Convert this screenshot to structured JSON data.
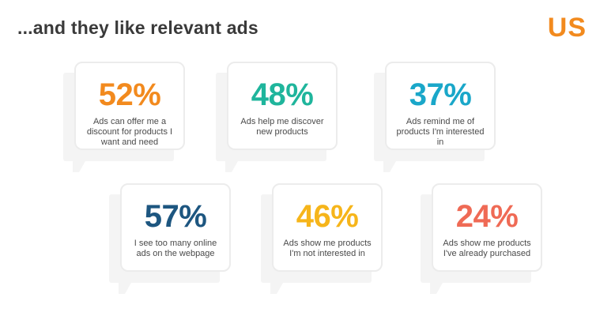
{
  "header": {
    "title": "...and they like relevant ads",
    "logo": "US"
  },
  "colors": {
    "orange": "#f28a1e",
    "teal": "#1fb59c",
    "cyan": "#1aa7c9",
    "navy": "#1d5680",
    "yellow": "#f6b51a",
    "coral": "#ef6a55"
  },
  "cards": [
    {
      "percent": "52%",
      "text": "Ads can offer me a discount for products I want and need",
      "color": "#f28a1e"
    },
    {
      "percent": "48%",
      "text": "Ads help me discover new products",
      "color": "#1fb59c"
    },
    {
      "percent": "37%",
      "text": "Ads remind me of products I'm interested in",
      "color": "#1aa7c9"
    },
    {
      "percent": "57%",
      "text": "I see too many online ads on the webpage",
      "color": "#1d5680"
    },
    {
      "percent": "46%",
      "text": "Ads show me products I'm not interested in",
      "color": "#f6b51a"
    },
    {
      "percent": "24%",
      "text": "Ads show me products I've already purchased",
      "color": "#ef6a55"
    }
  ]
}
